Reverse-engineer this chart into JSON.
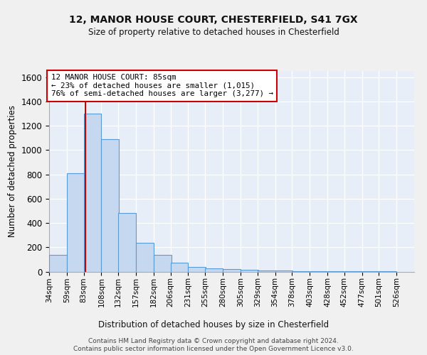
{
  "title1": "12, MANOR HOUSE COURT, CHESTERFIELD, S41 7GX",
  "title2": "Size of property relative to detached houses in Chesterfield",
  "xlabel": "Distribution of detached houses by size in Chesterfield",
  "ylabel": "Number of detached properties",
  "bin_edges": [
    34,
    59,
    83,
    108,
    132,
    157,
    182,
    206,
    231,
    255,
    280,
    305,
    329,
    354,
    378,
    403,
    428,
    452,
    477,
    501,
    526
  ],
  "bar_heights": [
    140,
    810,
    1300,
    1090,
    480,
    235,
    135,
    75,
    40,
    25,
    20,
    15,
    10,
    10,
    5,
    5,
    3,
    3,
    2,
    2
  ],
  "bar_color": "#c5d8f0",
  "bar_edge_color": "#5b9bd5",
  "property_size": 85,
  "red_line_color": "#cc0000",
  "ylim": [
    0,
    1650
  ],
  "yticks": [
    0,
    200,
    400,
    600,
    800,
    1000,
    1200,
    1400,
    1600
  ],
  "annotation_text": "12 MANOR HOUSE COURT: 85sqm\n← 23% of detached houses are smaller (1,015)\n76% of semi-detached houses are larger (3,277) →",
  "annotation_box_color": "#ffffff",
  "annotation_box_edge_color": "#cc0000",
  "footer": "Contains HM Land Registry data © Crown copyright and database right 2024.\nContains public sector information licensed under the Open Government Licence v3.0.",
  "background_color": "#e8eef8",
  "fig_background_color": "#f0f0f0",
  "grid_color": "#ffffff"
}
